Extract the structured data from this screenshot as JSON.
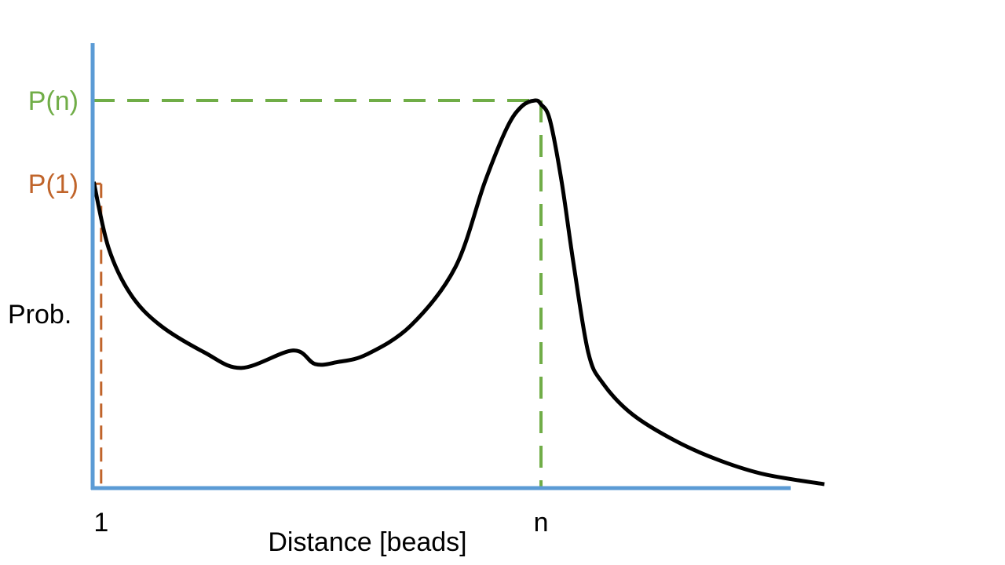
{
  "chart_data": {
    "type": "line",
    "title": "",
    "xlabel": "Distance [beads]",
    "ylabel": "Prob.",
    "x_tick_labels": [
      {
        "x": 1,
        "label": "1"
      },
      {
        "x": 30.8,
        "label": "n"
      }
    ],
    "y_tick_labels": [
      {
        "y": 0.785,
        "label": "P(1)",
        "color": "#c0642a"
      },
      {
        "y": 1.0,
        "label": "P(n)",
        "color": "#70ad47"
      }
    ],
    "xlim": [
      0,
      50
    ],
    "ylim": [
      0,
      1.2
    ],
    "grid": false,
    "legend": "none",
    "series": [
      {
        "color": "#000000",
        "x": [
          0.5,
          1.5,
          3,
          5,
          8,
          10.5,
          14,
          15.5,
          17,
          19,
          22,
          25,
          27,
          28.5,
          29.5,
          30.4,
          30.8,
          31.4,
          32.2,
          33,
          34,
          35,
          37,
          40,
          43,
          46,
          50
        ],
        "y": [
          0.79,
          0.62,
          0.5,
          0.42,
          0.35,
          0.31,
          0.355,
          0.32,
          0.325,
          0.345,
          0.42,
          0.57,
          0.79,
          0.93,
          0.985,
          1.0,
          0.99,
          0.95,
          0.79,
          0.58,
          0.35,
          0.27,
          0.19,
          0.12,
          0.07,
          0.035,
          0.01
        ]
      }
    ],
    "guides": [
      {
        "x": 1,
        "y": 0.785,
        "color": "#c0642a"
      },
      {
        "x": 30.8,
        "y": 1.0,
        "color": "#70ad47"
      }
    ],
    "axis_color": "#5b9bd5",
    "colors": {
      "curve": "#000000",
      "axis": "#5b9bd5",
      "p1": "#c0642a",
      "pn": "#70ad47",
      "text": "#000000"
    }
  }
}
